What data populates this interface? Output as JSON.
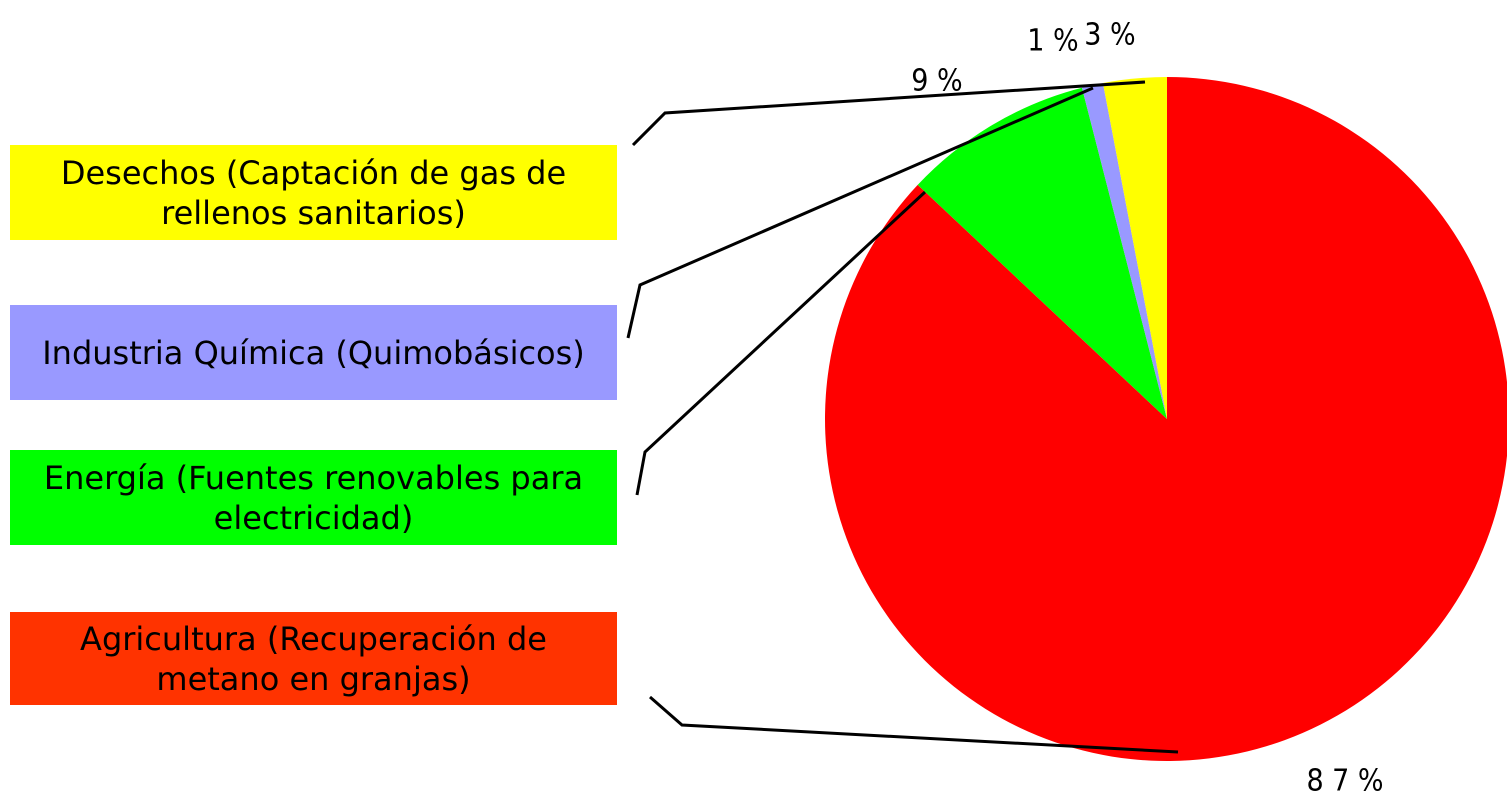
{
  "chart_data": {
    "type": "pie",
    "categories": [
      "Agricultura (Recuperación de metano en granjas)",
      "Energía (Fuentes renovables para electricidad)",
      "Industria Química (Quimobásicos)",
      "Desechos (Captación de gas de rellenos sanitarios)"
    ],
    "values": [
      87,
      9,
      1,
      3
    ],
    "value_labels": [
      "8 7 %",
      "9 %",
      "1 %",
      "3 %"
    ],
    "colors": [
      "#ff0000",
      "#00ff00",
      "#9999ff",
      "#ffff00"
    ],
    "legend_colors": [
      "#ff3300",
      "#00ff00",
      "#9999ff",
      "#ffff00"
    ]
  }
}
